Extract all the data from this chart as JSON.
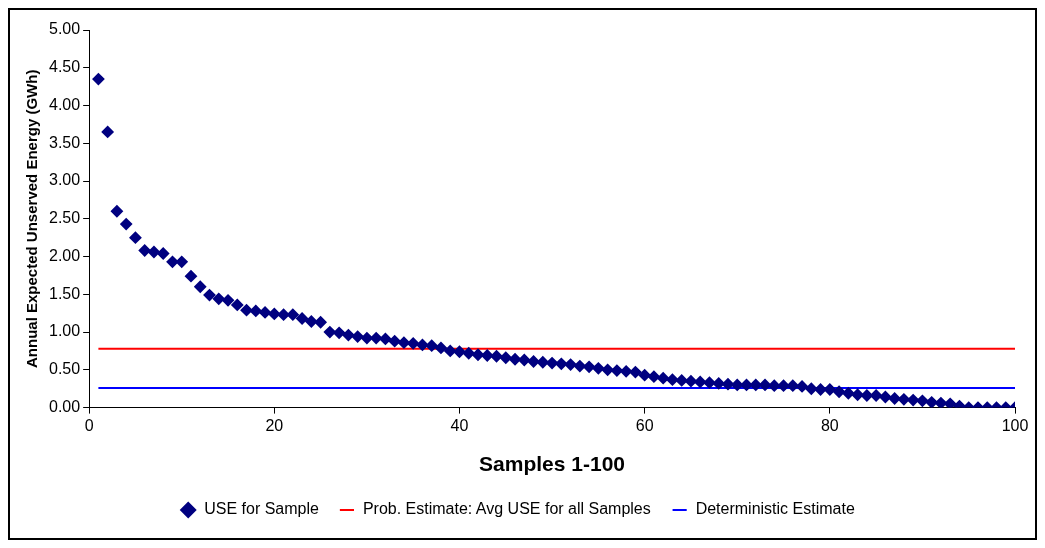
{
  "chart_data": {
    "type": "scatter",
    "xlabel": "Samples 1-100",
    "ylabel": "Annual Expected Unserved Energy (GWh)",
    "xlim": [
      0,
      100
    ],
    "xticks": [
      0,
      20,
      40,
      60,
      80,
      100
    ],
    "ylim": [
      0,
      5
    ],
    "yticks": [
      {
        "value": 0,
        "label": "0.00"
      },
      {
        "value": 0.5,
        "label": "0.50"
      },
      {
        "value": 1,
        "label": "1.00"
      },
      {
        "value": 1.5,
        "label": "1.50"
      },
      {
        "value": 2,
        "label": "2.00"
      },
      {
        "value": 2.5,
        "label": "2.50"
      },
      {
        "value": 3,
        "label": "3.00"
      },
      {
        "value": 3.5,
        "label": "3.50"
      },
      {
        "value": 4,
        "label": "4.00"
      },
      {
        "value": 4.5,
        "label": "4.50"
      },
      {
        "value": 5,
        "label": "5.00"
      }
    ],
    "grid": false,
    "legend": "bottom",
    "series": [
      {
        "name": "USE for Sample",
        "marker": "diamond",
        "color": "#000080",
        "x": [
          1,
          2,
          3,
          4,
          5,
          6,
          7,
          8,
          9,
          10,
          11,
          12,
          13,
          14,
          15,
          16,
          17,
          18,
          19,
          20,
          21,
          22,
          23,
          24,
          25,
          26,
          27,
          28,
          29,
          30,
          31,
          32,
          33,
          34,
          35,
          36,
          37,
          38,
          39,
          40,
          41,
          42,
          43,
          44,
          45,
          46,
          47,
          48,
          49,
          50,
          51,
          52,
          53,
          54,
          55,
          56,
          57,
          58,
          59,
          60,
          61,
          62,
          63,
          64,
          65,
          66,
          67,
          68,
          69,
          70,
          71,
          72,
          73,
          74,
          75,
          76,
          77,
          78,
          79,
          80,
          81,
          82,
          83,
          84,
          85,
          86,
          87,
          88,
          89,
          90,
          91,
          92,
          93,
          94,
          95,
          96,
          97,
          98,
          99,
          100
        ],
        "values": [
          4.35,
          3.65,
          2.6,
          2.43,
          2.25,
          2.08,
          2.06,
          2.04,
          1.93,
          1.93,
          1.74,
          1.6,
          1.49,
          1.44,
          1.42,
          1.36,
          1.29,
          1.28,
          1.26,
          1.24,
          1.23,
          1.23,
          1.18,
          1.14,
          1.13,
          1.0,
          0.99,
          0.96,
          0.94,
          0.92,
          0.92,
          0.91,
          0.88,
          0.86,
          0.85,
          0.83,
          0.82,
          0.79,
          0.75,
          0.74,
          0.72,
          0.7,
          0.69,
          0.68,
          0.66,
          0.64,
          0.63,
          0.61,
          0.6,
          0.59,
          0.58,
          0.57,
          0.55,
          0.54,
          0.52,
          0.5,
          0.49,
          0.48,
          0.47,
          0.43,
          0.41,
          0.39,
          0.37,
          0.36,
          0.35,
          0.34,
          0.33,
          0.32,
          0.31,
          0.3,
          0.3,
          0.3,
          0.3,
          0.29,
          0.29,
          0.29,
          0.28,
          0.25,
          0.24,
          0.24,
          0.21,
          0.19,
          0.17,
          0.16,
          0.16,
          0.14,
          0.12,
          0.11,
          0.1,
          0.09,
          0.07,
          0.06,
          0.05,
          0.02,
          0,
          0,
          0,
          0,
          0,
          0
        ]
      },
      {
        "name": "Prob. Estimate: Avg USE for all Samples",
        "type": "line",
        "marker": "none",
        "color": "#ff0000",
        "x": [
          1,
          100
        ],
        "values": [
          0.78,
          0.78
        ]
      },
      {
        "name": "Deterministic Estimate",
        "type": "line",
        "marker": "none",
        "color": "#0000ff",
        "x": [
          1,
          100
        ],
        "values": [
          0.26,
          0.26
        ]
      }
    ]
  }
}
